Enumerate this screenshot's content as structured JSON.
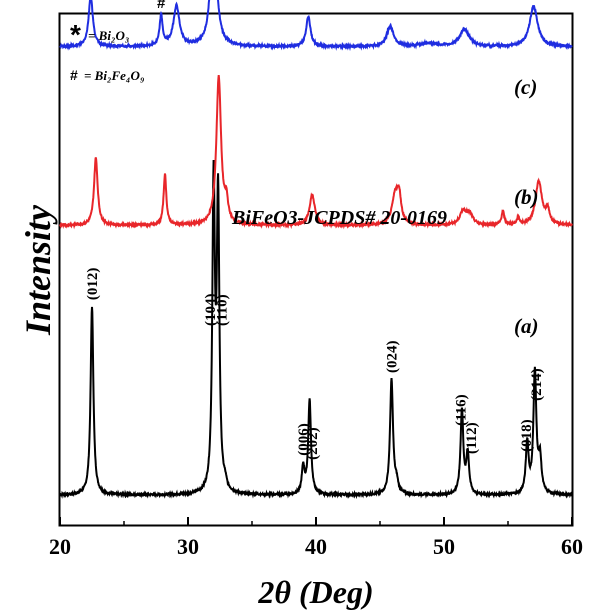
{
  "chart_data": {
    "type": "line",
    "xlabel": "2θ (Deg)",
    "ylabel": "Intensity",
    "xlim": [
      20,
      60
    ],
    "x_ticks": [
      "20",
      "30",
      "40",
      "50",
      "60"
    ],
    "y_ticks_labels": false,
    "grid": false,
    "annotation": "BiFeO3-JCPDS# 20-0169",
    "legend": [
      {
        "symbol": "*",
        "text": "= Bi₂O₃"
      },
      {
        "symbol": "#",
        "text": "= Bi₂Fe₄O₉"
      }
    ],
    "series": [
      {
        "name": "(a)",
        "color": "#000000",
        "baseline": 0.0,
        "peaks": [
          {
            "x": 22.5,
            "h": 0.56,
            "w": 0.13
          },
          {
            "x": 32.0,
            "h": 0.9,
            "w": 0.12
          },
          {
            "x": 32.35,
            "h": 0.86,
            "w": 0.12
          },
          {
            "x": 32.9,
            "h": 0.02,
            "w": 0.15
          },
          {
            "x": 39.0,
            "h": 0.08,
            "w": 0.13
          },
          {
            "x": 39.5,
            "h": 0.28,
            "w": 0.13
          },
          {
            "x": 45.9,
            "h": 0.34,
            "w": 0.14
          },
          {
            "x": 46.3,
            "h": 0.03,
            "w": 0.15
          },
          {
            "x": 51.4,
            "h": 0.25,
            "w": 0.13
          },
          {
            "x": 51.85,
            "h": 0.12,
            "w": 0.13
          },
          {
            "x": 56.5,
            "h": 0.15,
            "w": 0.13
          },
          {
            "x": 57.1,
            "h": 0.36,
            "w": 0.14
          },
          {
            "x": 57.5,
            "h": 0.1,
            "w": 0.14
          }
        ],
        "peak_labels": [
          {
            "x": 22.5,
            "text": "(012)"
          },
          {
            "x": 31.7,
            "text": "(104)"
          },
          {
            "x": 32.6,
            "text": "(110)"
          },
          {
            "x": 39.0,
            "text": "(006)"
          },
          {
            "x": 39.7,
            "text": "(202)"
          },
          {
            "x": 45.9,
            "text": "(024)"
          },
          {
            "x": 51.3,
            "text": "(116)"
          },
          {
            "x": 52.1,
            "text": "(112)"
          },
          {
            "x": 56.4,
            "text": "(018)"
          },
          {
            "x": 57.2,
            "text": "(214)"
          }
        ],
        "label": "(a)"
      },
      {
        "name": "(b)",
        "color": "#e8262a",
        "baseline": 0.8,
        "peaks": [
          {
            "x": 22.8,
            "h": 0.2,
            "w": 0.17
          },
          {
            "x": 28.2,
            "h": 0.15,
            "w": 0.13
          },
          {
            "x": 32.4,
            "h": 0.44,
            "w": 0.22
          },
          {
            "x": 33.0,
            "h": 0.06,
            "w": 0.15
          },
          {
            "x": 39.7,
            "h": 0.09,
            "w": 0.25
          },
          {
            "x": 46.2,
            "h": 0.09,
            "w": 0.3
          },
          {
            "x": 46.5,
            "h": 0.07,
            "w": 0.18
          },
          {
            "x": 51.5,
            "h": 0.04,
            "w": 0.3
          },
          {
            "x": 52.0,
            "h": 0.03,
            "w": 0.3
          },
          {
            "x": 54.6,
            "h": 0.04,
            "w": 0.13
          },
          {
            "x": 55.8,
            "h": 0.02,
            "w": 0.13
          },
          {
            "x": 57.4,
            "h": 0.13,
            "w": 0.3
          },
          {
            "x": 58.1,
            "h": 0.04,
            "w": 0.18
          }
        ],
        "label": "(b)"
      },
      {
        "name": "(c)",
        "color": "#1f2de0",
        "baseline": 1.33,
        "peaks": [
          {
            "x": 22.4,
            "h": 0.15,
            "w": 0.2
          },
          {
            "x": 27.9,
            "h": 0.09,
            "w": 0.14
          },
          {
            "x": 29.1,
            "h": 0.12,
            "w": 0.28
          },
          {
            "x": 32.0,
            "h": 0.37,
            "w": 0.27
          },
          {
            "x": 39.4,
            "h": 0.09,
            "w": 0.2
          },
          {
            "x": 45.8,
            "h": 0.06,
            "w": 0.32
          },
          {
            "x": 48.8,
            "h": 0.01,
            "w": 0.7
          },
          {
            "x": 51.6,
            "h": 0.05,
            "w": 0.45
          },
          {
            "x": 57.0,
            "h": 0.12,
            "w": 0.37
          }
        ],
        "peak_markers": [
          {
            "x": 27.9,
            "text": "#"
          },
          {
            "x": 29.2,
            "text": "*"
          }
        ],
        "label": "(c)"
      }
    ]
  }
}
